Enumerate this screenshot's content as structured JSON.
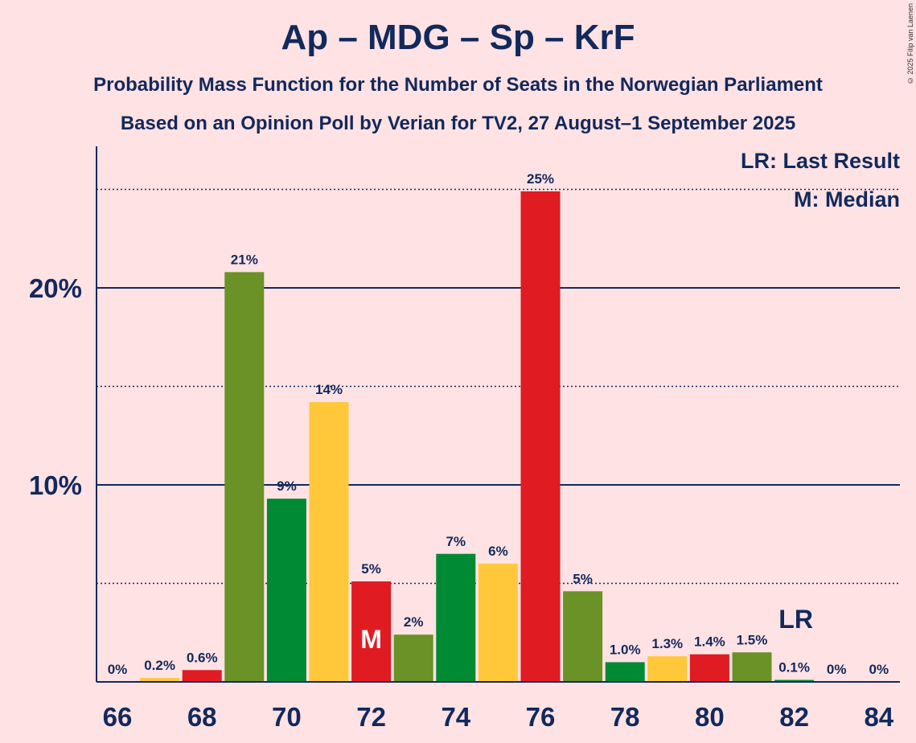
{
  "title": "Ap – MDG – Sp – KrF",
  "subtitle1": "Probability Mass Function for the Number of Seats in the Norwegian Parliament",
  "subtitle2": "Based on an Opinion Poll by Verian for TV2, 27 August–1 September 2025",
  "copyright": "© 2025 Filip van Laenen",
  "legend": {
    "lr": "LR: Last Result",
    "m": "M: Median"
  },
  "colors": {
    "background": "#FFE2E4",
    "text": "#12295B",
    "ap": "#E01B22",
    "mdg": "#6A9226",
    "sp": "#008A33",
    "krf": "#FFC83A"
  },
  "chart_data": {
    "type": "bar",
    "categories": [
      66,
      67,
      68,
      69,
      70,
      71,
      72,
      73,
      74,
      75,
      76,
      77,
      78,
      79,
      80,
      81,
      82,
      83,
      84
    ],
    "values": [
      0,
      0.2,
      0.6,
      20.8,
      9.3,
      14.2,
      5.1,
      2.4,
      6.5,
      6.0,
      24.9,
      4.6,
      1.0,
      1.3,
      1.4,
      1.5,
      0.1,
      0,
      0
    ],
    "labels": [
      "0%",
      "0.2%",
      "0.6%",
      "21%",
      "9%",
      "14%",
      "5%",
      "2%",
      "7%",
      "6%",
      "25%",
      "5%",
      "1.0%",
      "1.3%",
      "1.4%",
      "1.5%",
      "0.1%",
      "0%",
      "0%"
    ],
    "bar_colors": [
      "#E01B22",
      "#FFC83A",
      "#E01B22",
      "#6A9226",
      "#008A33",
      "#FFC83A",
      "#E01B22",
      "#6A9226",
      "#008A33",
      "#FFC83A",
      "#E01B22",
      "#6A9226",
      "#008A33",
      "#FFC83A",
      "#E01B22",
      "#6A9226",
      "#008A33",
      "#FFC83A",
      "#E01B22"
    ],
    "x_tick_labels": [
      "66",
      "68",
      "70",
      "72",
      "74",
      "76",
      "78",
      "80",
      "82",
      "84"
    ],
    "y_tick_labels": [
      "10%",
      "20%"
    ],
    "ylim": [
      0,
      27
    ],
    "gridlines_solid": [
      10,
      20
    ],
    "gridlines_dotted": [
      5,
      15,
      25
    ],
    "median_seat": 72,
    "median_label": "M",
    "last_result_seat": 82,
    "last_result_label": "LR"
  }
}
